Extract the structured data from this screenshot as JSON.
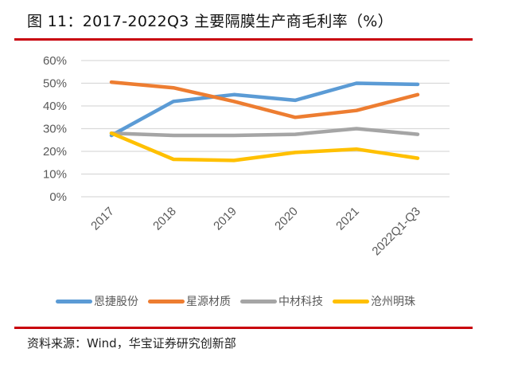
{
  "header": {
    "title": "图 11：2017-2022Q3 主要隔膜生产商毛利率（%）"
  },
  "footer": {
    "source": "资料来源：Wind，华宝证券研究创新部"
  },
  "colors": {
    "rule": "#c8000b",
    "series": [
      "#5b9bd5",
      "#ed7d31",
      "#a5a5a5",
      "#ffc000"
    ],
    "grid": "#d9d9d9"
  },
  "chart_data": {
    "type": "line",
    "title": "2017-2022Q3 主要隔膜生产商毛利率（%）",
    "xlabel": "",
    "ylabel": "",
    "categories": [
      "2017",
      "2018",
      "2019",
      "2020",
      "2021",
      "2022Q1-Q3"
    ],
    "yticks": [
      "0%",
      "10%",
      "20%",
      "30%",
      "40%",
      "50%",
      "60%"
    ],
    "ylim": [
      0,
      60
    ],
    "grid": true,
    "legend_position": "bottom",
    "series": [
      {
        "name": "恩捷股份",
        "color": "#5b9bd5",
        "values": [
          27,
          42,
          45,
          42.5,
          50,
          49.5
        ]
      },
      {
        "name": "星源材质",
        "color": "#ed7d31",
        "values": [
          50.5,
          48,
          42,
          35,
          38,
          45
        ]
      },
      {
        "name": "中材科技",
        "color": "#a5a5a5",
        "values": [
          28,
          27,
          27,
          27.5,
          30,
          27.5
        ]
      },
      {
        "name": "沧州明珠",
        "color": "#ffc000",
        "values": [
          28,
          16.5,
          16,
          19.5,
          21,
          17
        ]
      }
    ]
  }
}
